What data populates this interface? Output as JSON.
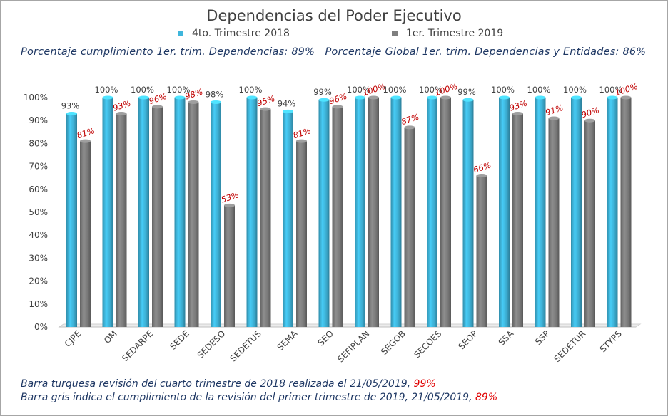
{
  "chart_data": {
    "type": "bar",
    "title": "Dependencias del Poder Ejecutivo",
    "categories": [
      "CJPE",
      "OM",
      "SEDARPE",
      "SEDE",
      "SEDESO",
      "SEDETUS",
      "SEMA",
      "SEQ",
      "SEFIPLAN",
      "SEGOB",
      "SECOES",
      "SEOP",
      "SSA",
      "SSP",
      "SEDETUR",
      "STYPS"
    ],
    "series": [
      {
        "name": "4to. Trimestre 2018",
        "color": "#3fb6dc",
        "values": [
          93,
          100,
          100,
          100,
          98,
          100,
          94,
          99,
          100,
          100,
          100,
          99,
          100,
          100,
          100,
          100
        ],
        "labels": [
          "93%",
          "100%",
          "100%",
          "100%",
          "98%",
          "100%",
          "94%",
          "99%",
          "100%",
          "100%",
          "100%",
          "99%",
          "100%",
          "100%",
          "100%",
          "100%"
        ]
      },
      {
        "name": "1er. Trimestre 2019",
        "color": "#7f7f7f",
        "values": [
          81,
          93,
          96,
          98,
          53,
          95,
          81,
          96,
          100,
          87,
          100,
          66,
          93,
          91,
          90,
          100
        ],
        "labels": [
          "81%",
          "93%",
          "96%",
          "98%",
          "53%",
          "95%",
          "81%",
          "96%",
          "100%",
          "87%",
          "100%",
          "66%",
          "93%",
          "91%",
          "90%",
          "100%"
        ]
      }
    ],
    "y_ticks": [
      "0%",
      "10%",
      "20%",
      "30%",
      "40%",
      "50%",
      "60%",
      "70%",
      "80%",
      "90%",
      "100%"
    ],
    "ylim": [
      0,
      100
    ],
    "grid": false,
    "legend": "top"
  },
  "summary": "Porcentaje cumplimiento 1er. trim. Dependencias: 89%   Porcentaje Global 1er. trim. Dependencias y Entidades: 86%",
  "notes": [
    {
      "text": "Barra turquesa revisión del cuarto trimestre de 2018 realizada el 21/05/2019, ",
      "pct": "99%"
    },
    {
      "text": "Barra gris indica el cumplimiento de la revisión del primer trimestre de 2019, 21/05/2019, ",
      "pct": "89%"
    }
  ]
}
